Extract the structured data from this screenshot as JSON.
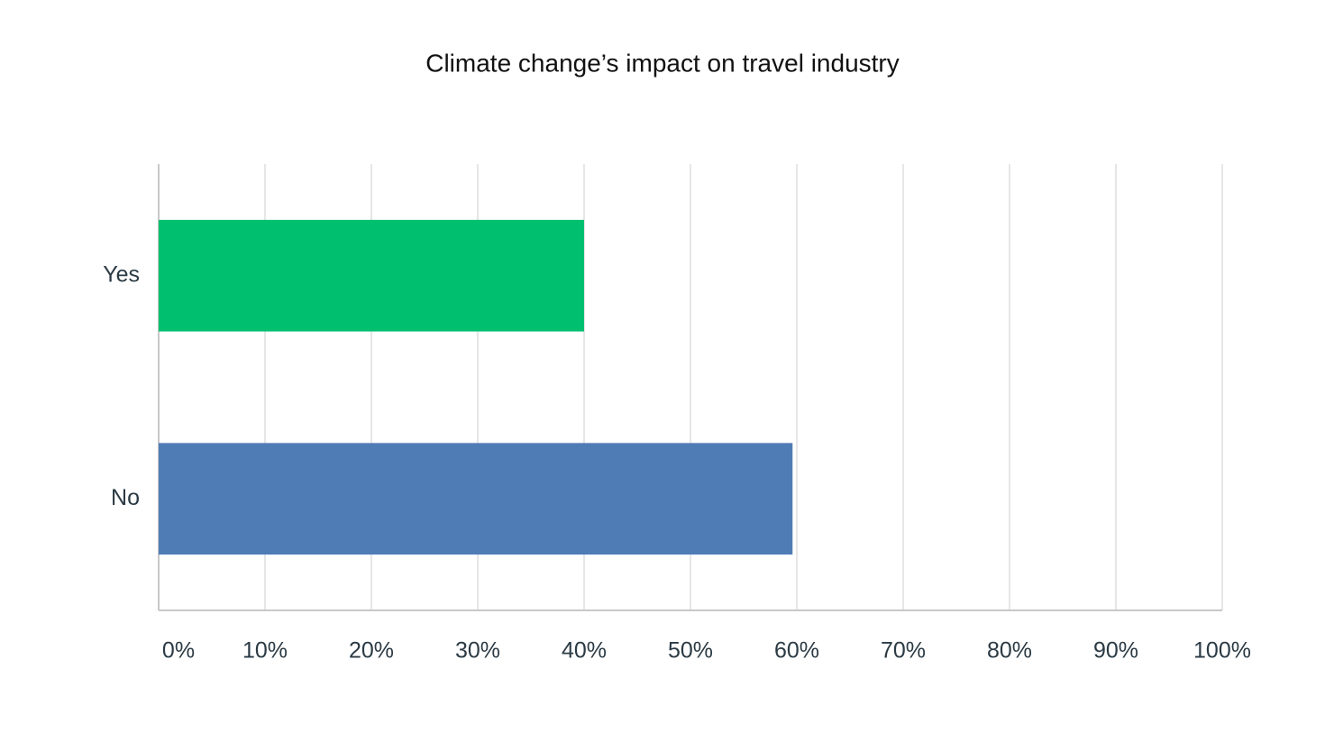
{
  "chart_data": {
    "type": "hbar",
    "title": "Climate change’s impact on travel industry",
    "categories": [
      "Yes",
      "No"
    ],
    "values": [
      40,
      59.6
    ],
    "colors": [
      "#00bf6f",
      "#507cb6"
    ],
    "xlim": [
      0,
      100
    ],
    "xticks": [
      {
        "value": 0,
        "label": "0%"
      },
      {
        "value": 10,
        "label": "10%"
      },
      {
        "value": 20,
        "label": "20%"
      },
      {
        "value": 30,
        "label": "30%"
      },
      {
        "value": 40,
        "label": "40%"
      },
      {
        "value": 50,
        "label": "50%"
      },
      {
        "value": 60,
        "label": "60%"
      },
      {
        "value": 70,
        "label": "70%"
      },
      {
        "value": 80,
        "label": "80%"
      },
      {
        "value": 90,
        "label": "90%"
      },
      {
        "value": 100,
        "label": "100%"
      }
    ],
    "grid": true
  }
}
